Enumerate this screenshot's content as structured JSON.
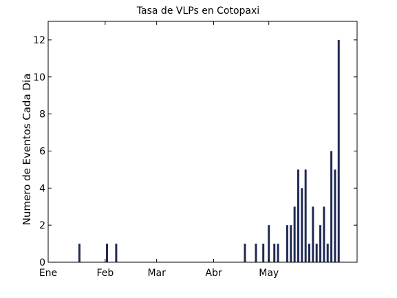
{
  "chart_data": {
    "type": "bar",
    "title": "Tasa de VLPs en Cotopaxi",
    "xlabel": "",
    "ylabel": "Numero de Eventos Cada Dia",
    "x_ticks": [
      {
        "label": "Ene",
        "day": 0
      },
      {
        "label": "Feb",
        "day": 31
      },
      {
        "label": "Mar",
        "day": 59
      },
      {
        "label": "Abr",
        "day": 90
      },
      {
        "label": "May",
        "day": 120
      }
    ],
    "xlim_days": [
      0,
      168
    ],
    "y_ticks": [
      0,
      2,
      4,
      6,
      8,
      10,
      12
    ],
    "ylim": [
      0,
      13
    ],
    "grid": false,
    "series": [
      {
        "days": [
          17,
          32,
          37,
          107,
          113,
          117,
          120,
          123,
          125,
          130,
          132,
          134,
          136,
          138,
          140,
          142,
          144,
          146,
          148,
          150,
          152,
          154,
          156,
          158,
          160
        ],
        "values": [
          1,
          1,
          1,
          1,
          1,
          1,
          2,
          1,
          1,
          2,
          2,
          3,
          5,
          4,
          5,
          1,
          3,
          1,
          2,
          3,
          1,
          6,
          5,
          12,
          0
        ],
        "color": "#1f2a55"
      }
    ]
  }
}
